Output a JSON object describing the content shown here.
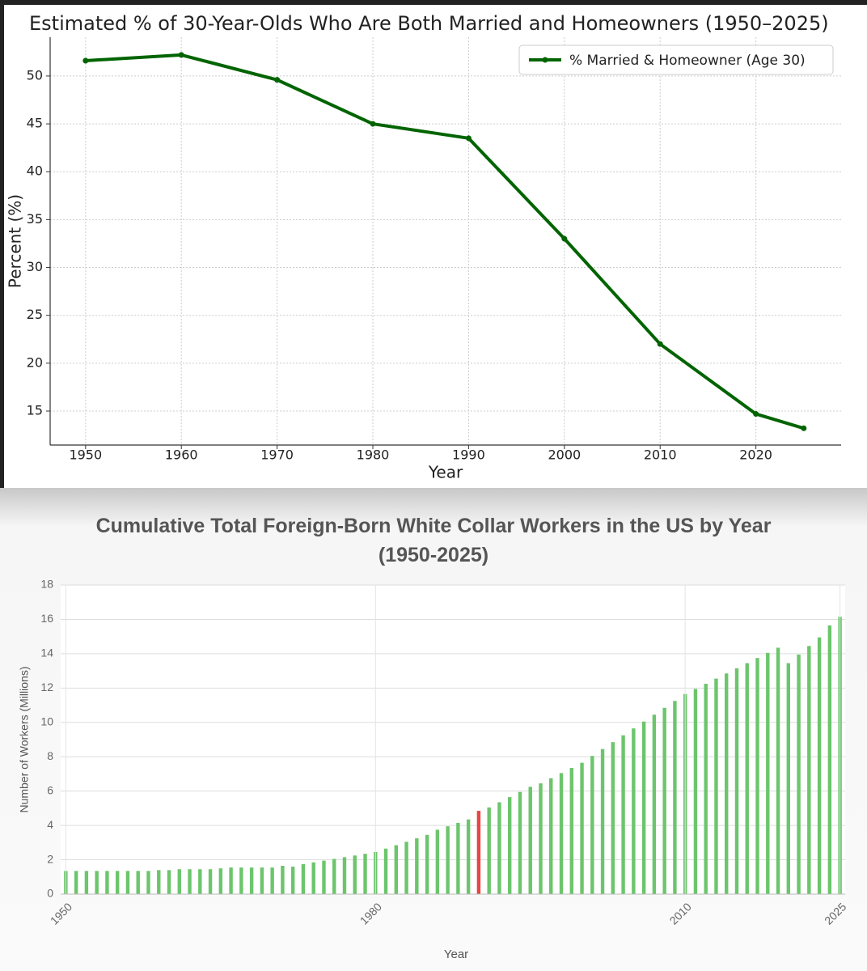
{
  "chart_data": [
    {
      "type": "line",
      "title": "Estimated % of 30-Year-Olds Who Are Both Married and Homeowners (1950–2025)",
      "xlabel": "Year",
      "ylabel": "Percent (%)",
      "x": [
        1950,
        1960,
        1970,
        1980,
        1990,
        2000,
        2010,
        2020,
        2025
      ],
      "series": [
        {
          "name": "% Married & Homeowner (Age 30)",
          "color": "#006400",
          "values": [
            51.6,
            52.2,
            49.6,
            45,
            43.5,
            33,
            22,
            14.7,
            13.2
          ]
        }
      ],
      "xlim": [
        1946.3,
        2028.9
      ],
      "xticks": [
        1950,
        1960,
        1970,
        1980,
        1990,
        2000,
        2010,
        2020
      ],
      "ylim": [
        11.45,
        54.05
      ],
      "yticks": [
        15,
        20,
        25,
        30,
        35,
        40,
        45,
        50
      ],
      "grid": true,
      "legend": "upper right"
    },
    {
      "type": "bar",
      "title": "Cumulative Total Foreign-Born White Collar Workers in the US by Year (1950-2025)",
      "xlabel": "Year",
      "ylabel": "Number of Workers (Millions)",
      "categories": [
        "1950",
        null,
        null,
        null,
        null,
        null,
        null,
        null,
        null,
        null,
        null,
        null,
        null,
        null,
        null,
        null,
        null,
        null,
        null,
        null,
        null,
        null,
        null,
        null,
        null,
        null,
        null,
        null,
        null,
        null,
        "1980",
        null,
        null,
        null,
        null,
        null,
        null,
        null,
        null,
        null,
        null,
        null,
        null,
        null,
        null,
        null,
        null,
        null,
        null,
        null,
        null,
        null,
        null,
        null,
        null,
        null,
        null,
        null,
        null,
        null,
        "2010",
        null,
        null,
        null,
        null,
        null,
        null,
        null,
        null,
        null,
        null,
        null,
        null,
        null,
        null,
        "2025"
      ],
      "values": [
        1.35,
        1.35,
        1.35,
        1.35,
        1.35,
        1.35,
        1.35,
        1.35,
        1.35,
        1.4,
        1.4,
        1.45,
        1.45,
        1.45,
        1.45,
        1.5,
        1.55,
        1.55,
        1.55,
        1.55,
        1.55,
        1.65,
        1.6,
        1.75,
        1.85,
        1.95,
        2.05,
        2.15,
        2.25,
        2.35,
        2.45,
        2.65,
        2.85,
        3.05,
        3.25,
        3.45,
        3.75,
        3.95,
        4.15,
        4.35,
        4.85,
        5.05,
        5.35,
        5.65,
        5.95,
        6.25,
        6.45,
        6.75,
        7.05,
        7.35,
        7.65,
        8.05,
        8.45,
        8.85,
        9.25,
        9.65,
        10.05,
        10.45,
        10.85,
        11.25,
        11.65,
        11.95,
        12.25,
        12.55,
        12.85,
        13.15,
        13.45,
        13.75,
        14.05,
        14.35,
        13.45,
        13.95,
        14.45,
        14.95,
        15.65,
        16.15
      ],
      "colors": [
        "#6cc56c",
        "#6cc56c",
        "#6cc56c",
        "#6cc56c",
        "#6cc56c",
        "#6cc56c",
        "#6cc56c",
        "#6cc56c",
        "#6cc56c",
        "#6cc56c",
        "#6cc56c",
        "#6cc56c",
        "#6cc56c",
        "#6cc56c",
        "#6cc56c",
        "#6cc56c",
        "#6cc56c",
        "#6cc56c",
        "#6cc56c",
        "#6cc56c",
        "#6cc56c",
        "#6cc56c",
        "#6cc56c",
        "#6cc56c",
        "#6cc56c",
        "#6cc56c",
        "#6cc56c",
        "#6cc56c",
        "#6cc56c",
        "#6cc56c",
        "#6cc56c",
        "#6cc56c",
        "#6cc56c",
        "#6cc56c",
        "#6cc56c",
        "#6cc56c",
        "#6cc56c",
        "#6cc56c",
        "#6cc56c",
        "#6cc56c",
        "#e84545",
        "#6cc56c",
        "#6cc56c",
        "#6cc56c",
        "#6cc56c",
        "#6cc56c",
        "#6cc56c",
        "#6cc56c",
        "#6cc56c",
        "#6cc56c",
        "#6cc56c",
        "#6cc56c",
        "#6cc56c",
        "#6cc56c",
        "#6cc56c",
        "#6cc56c",
        "#6cc56c",
        "#6cc56c",
        "#6cc56c",
        "#6cc56c",
        "#6cc56c",
        "#6cc56c",
        "#6cc56c",
        "#6cc56c",
        "#6cc56c",
        "#6cc56c",
        "#6cc56c",
        "#6cc56c",
        "#6cc56c",
        "#6cc56c",
        "#6cc56c",
        "#6cc56c",
        "#6cc56c",
        "#6cc56c",
        "#6cc56c",
        "#6cc56c"
      ],
      "ylim": [
        0,
        18
      ],
      "yticks": [
        0,
        2,
        4,
        6,
        8,
        10,
        12,
        14,
        16,
        18
      ],
      "grid": true
    }
  ]
}
